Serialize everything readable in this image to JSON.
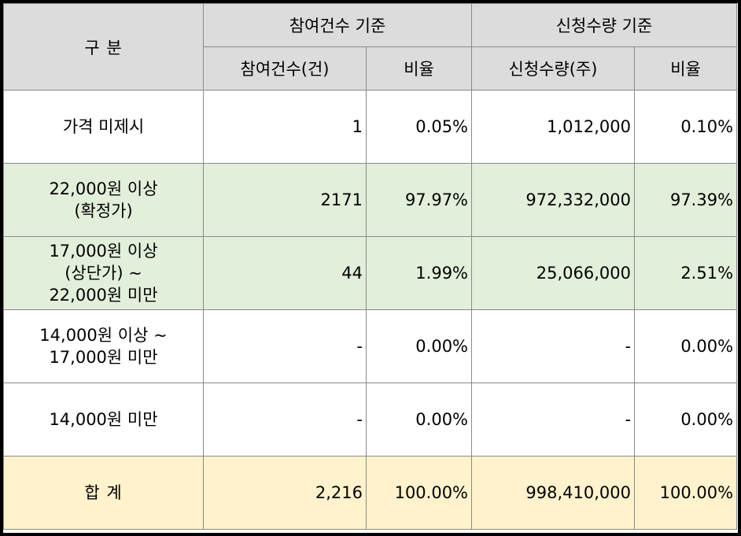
{
  "header": {
    "category": "구 분",
    "group1": "참여건수 기준",
    "group2": "신청수량 기준",
    "sub1": "참여건수(건)",
    "sub2": "비율",
    "sub3": "신청수량(주)",
    "sub4": "비율"
  },
  "rows": [
    {
      "label": [
        "가격 미제시"
      ],
      "count": "1",
      "count_ratio": "0.05%",
      "qty": "1,012,000",
      "qty_ratio": "0.10%"
    },
    {
      "label": [
        "22,000원 이상",
        "(확정가)"
      ],
      "count": "2171",
      "count_ratio": "97.97%",
      "qty": "972,332,000",
      "qty_ratio": "97.39%"
    },
    {
      "label": [
        "17,000원 이상",
        "(상단가) ~",
        "22,000원 미만"
      ],
      "count": "44",
      "count_ratio": "1.99%",
      "qty": "25,066,000",
      "qty_ratio": "2.51%"
    },
    {
      "label": [
        "14,000원 이상 ~",
        "17,000원 미만"
      ],
      "count": "-",
      "count_ratio": "0.00%",
      "qty": "-",
      "qty_ratio": "0.00%"
    },
    {
      "label": [
        "14,000원 미만"
      ],
      "count": "-",
      "count_ratio": "0.00%",
      "qty": "-",
      "qty_ratio": "0.00%"
    }
  ],
  "total": {
    "label": "합 계",
    "count": "2,216",
    "count_ratio": "100.00%",
    "qty": "998,410,000",
    "qty_ratio": "100.00%"
  },
  "colors": {
    "header_bg": "#dcdcdc",
    "green_rows_bg": "#e2efda",
    "total_row_bg": "#fff2cc"
  }
}
